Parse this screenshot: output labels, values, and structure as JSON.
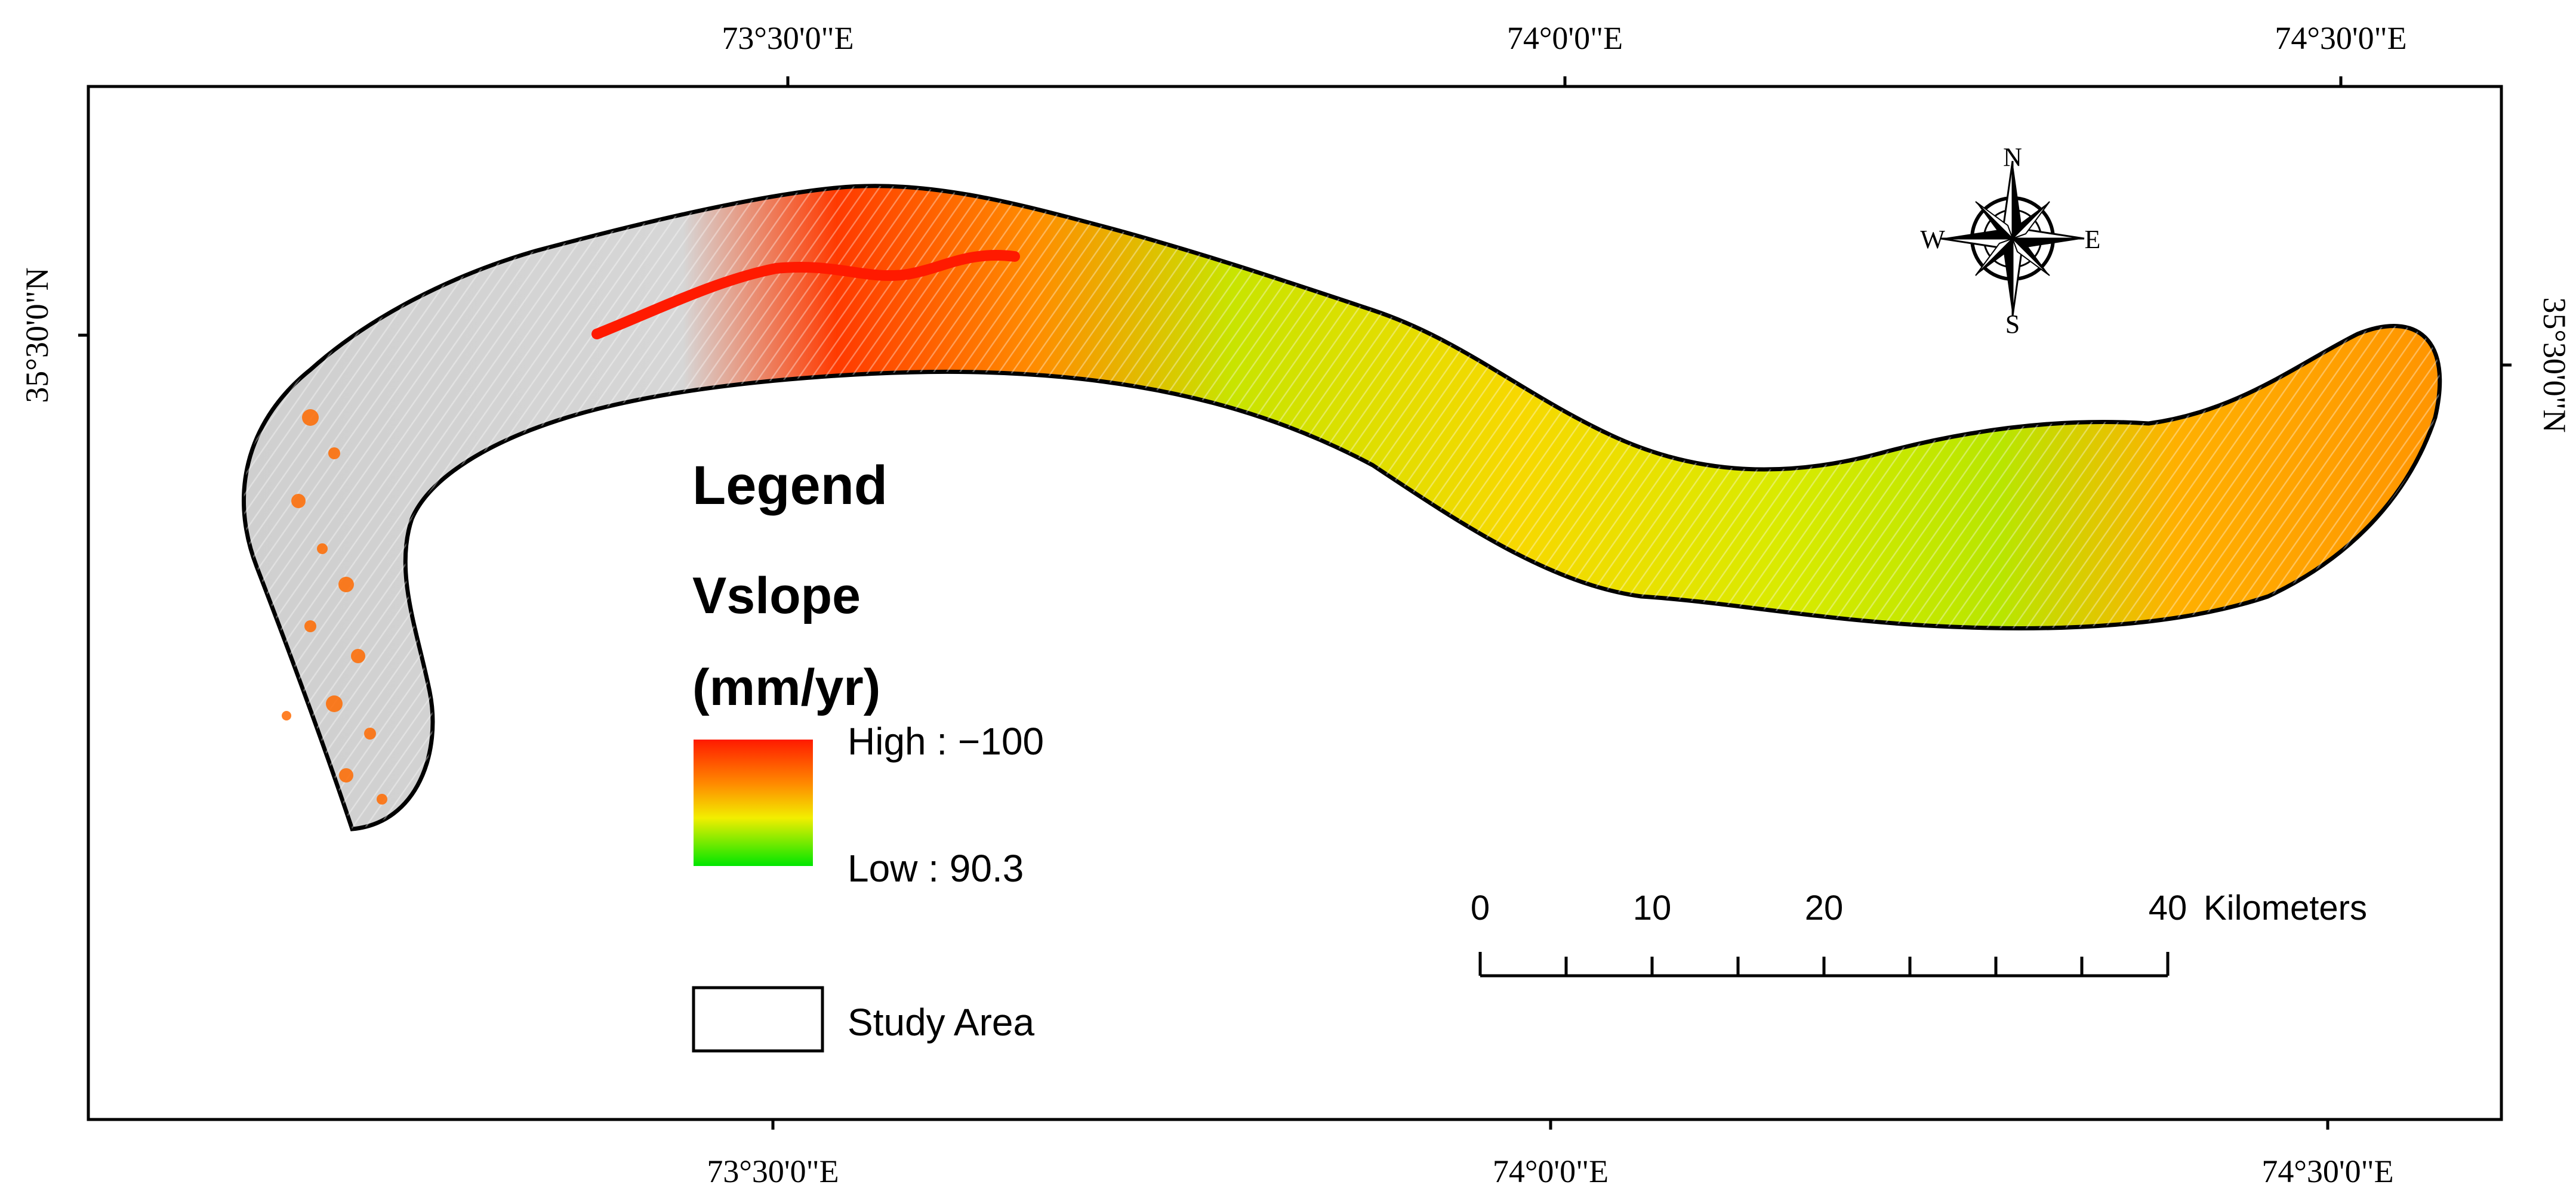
{
  "map": {
    "graticule": {
      "top_labels": [
        "73°30'0\"E",
        "74°0'0\"E",
        "74°30'0\"E"
      ],
      "bottom_labels": [
        "73°30'0\"E",
        "74°0'0\"E",
        "74°30'0\"E"
      ],
      "left_label": "35°30'0\"N",
      "right_label": "35°30'0\"N"
    },
    "legend": {
      "title": "Legend",
      "layer_name": "Vslope",
      "units": "(mm/yr)",
      "high_label": "High : −100",
      "low_label": "Low : 90.3",
      "ramp_colors": [
        "#ff1a00",
        "#ff8a00",
        "#f2ee00",
        "#00e600"
      ],
      "study_area_label": "Study Area"
    },
    "scale_bar": {
      "ticks": [
        "0",
        "10",
        "20",
        "40"
      ],
      "units_label": "Kilometers"
    },
    "north_arrow": {
      "north": "N",
      "south": "S",
      "east": "E",
      "west": "W"
    }
  }
}
